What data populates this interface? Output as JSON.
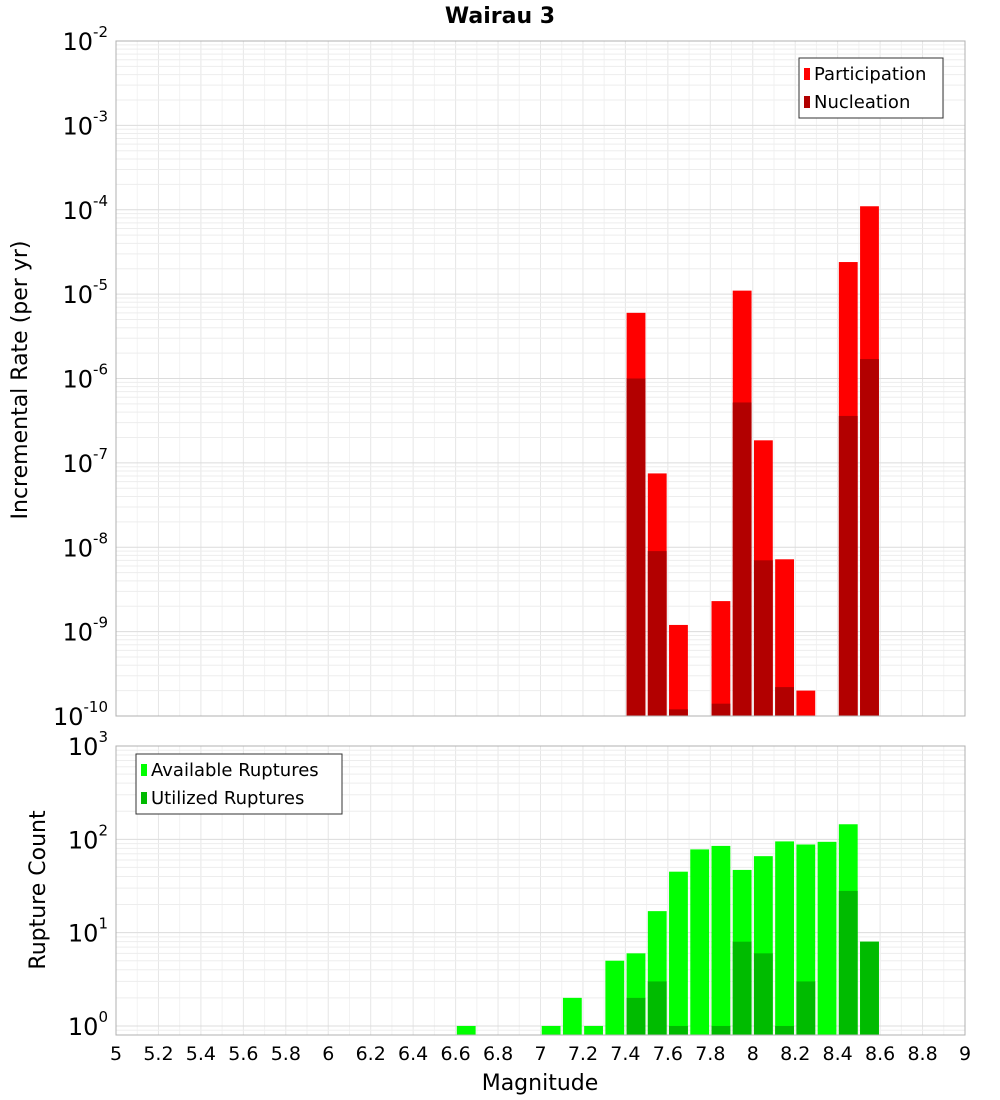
{
  "title": "Wairau 3",
  "x_axis_label": "Magnitude",
  "x_ticks": [
    "5",
    "5.2",
    "5.4",
    "5.6",
    "5.8",
    "6",
    "6.2",
    "6.4",
    "6.6",
    "6.8",
    "7",
    "7.2",
    "7.4",
    "7.6",
    "7.8",
    "8",
    "8.2",
    "8.4",
    "8.6",
    "8.8",
    "9"
  ],
  "chart_data": [
    {
      "type": "bar",
      "ylabel": "Incremental Rate (per yr)",
      "ylog": true,
      "ylim": [
        1e-10,
        0.01
      ],
      "xlim": [
        5,
        9
      ],
      "y_tick_exponents": [
        "-2",
        "-3",
        "-4",
        "-5",
        "-6",
        "-7",
        "-8",
        "-9",
        "-10"
      ],
      "grid": true,
      "legend_position": "top-right",
      "bin_width": 0.1,
      "series": [
        {
          "name": "Participation",
          "color": "#ff0000",
          "points": [
            [
              7.45,
              6e-06
            ],
            [
              7.55,
              7.5e-08
            ],
            [
              7.65,
              1.2e-09
            ],
            [
              7.85,
              2.3e-09
            ],
            [
              7.95,
              1.1e-05
            ],
            [
              8.05,
              1.85e-07
            ],
            [
              8.15,
              7.2e-09
            ],
            [
              8.25,
              2e-10
            ],
            [
              8.45,
              2.4e-05
            ],
            [
              8.55,
              0.00011
            ]
          ]
        },
        {
          "name": "Nucleation",
          "color": "#b20000",
          "points": [
            [
              7.45,
              1e-06
            ],
            [
              7.55,
              9e-09
            ],
            [
              7.65,
              1.2e-10
            ],
            [
              7.85,
              1.4e-10
            ],
            [
              7.95,
              5.2e-07
            ],
            [
              8.05,
              7e-09
            ],
            [
              8.15,
              2.2e-10
            ],
            [
              8.45,
              3.6e-07
            ],
            [
              8.55,
              1.7e-06
            ]
          ]
        }
      ]
    },
    {
      "type": "bar",
      "ylabel": "Rupture Count",
      "ylog": true,
      "ylim": [
        0.8,
        1000
      ],
      "xlim": [
        5,
        9
      ],
      "y_tick_exponents": [
        "3",
        "2",
        "1",
        "0"
      ],
      "grid": true,
      "legend_position": "top-left",
      "bin_width": 0.1,
      "series": [
        {
          "name": "Available Ruptures",
          "color": "#00ff00",
          "points": [
            [
              6.65,
              1
            ],
            [
              7.05,
              1
            ],
            [
              7.15,
              2
            ],
            [
              7.25,
              1
            ],
            [
              7.35,
              5
            ],
            [
              7.45,
              6
            ],
            [
              7.55,
              17
            ],
            [
              7.65,
              45
            ],
            [
              7.75,
              78
            ],
            [
              7.85,
              85
            ],
            [
              7.95,
              47
            ],
            [
              8.05,
              66
            ],
            [
              8.15,
              95
            ],
            [
              8.25,
              88
            ],
            [
              8.35,
              94
            ],
            [
              8.45,
              145
            ],
            [
              8.55,
              8
            ]
          ]
        },
        {
          "name": "Utilized Ruptures",
          "color": "#00bb00",
          "points": [
            [
              7.45,
              2
            ],
            [
              7.55,
              3
            ],
            [
              7.65,
              1
            ],
            [
              7.85,
              1
            ],
            [
              7.95,
              8
            ],
            [
              8.05,
              6
            ],
            [
              8.15,
              1
            ],
            [
              8.25,
              3
            ],
            [
              8.45,
              28
            ],
            [
              8.55,
              8
            ]
          ]
        }
      ]
    }
  ]
}
